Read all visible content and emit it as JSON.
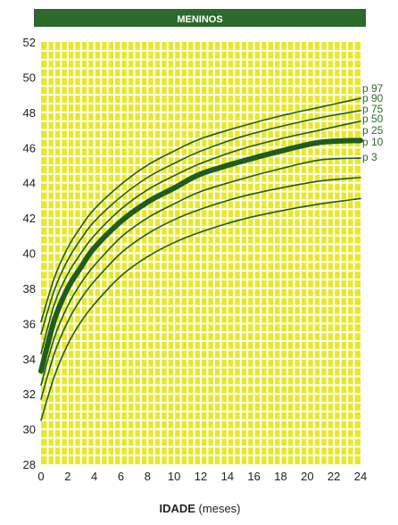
{
  "header": {
    "title": "MENINOS"
  },
  "colors": {
    "header_bg": "#2c6a2c",
    "header_text": "#ffffff",
    "plot_bg": "#e8e82a",
    "grid": "#ffffff",
    "curve": "#1f5c1f",
    "label_text": "#2c6a2c",
    "axis_text": "#222222"
  },
  "chart_data": {
    "type": "line",
    "title": "MENINOS",
    "xlabel_bold": "IDADE",
    "xlabel_rest": " (meses)",
    "ylabel": "",
    "xlim": [
      0,
      24
    ],
    "ylim": [
      28,
      52
    ],
    "x_ticks": [
      0,
      2,
      4,
      6,
      8,
      10,
      12,
      14,
      16,
      18,
      20,
      22,
      24
    ],
    "y_ticks": [
      28,
      30,
      32,
      34,
      36,
      38,
      40,
      42,
      44,
      46,
      48,
      50,
      52
    ],
    "grid": true,
    "x": [
      0,
      1,
      2,
      3,
      4,
      6,
      8,
      10,
      12,
      15,
      18,
      21,
      24
    ],
    "series": [
      {
        "name": "p 97",
        "bold": false,
        "values": [
          36.1,
          38.6,
          40.3,
          41.5,
          42.5,
          43.9,
          45.0,
          45.8,
          46.5,
          47.2,
          47.8,
          48.3,
          48.8
        ]
      },
      {
        "name": "p 90",
        "bold": false,
        "values": [
          35.4,
          37.9,
          39.6,
          40.8,
          41.8,
          43.2,
          44.3,
          45.1,
          45.8,
          46.6,
          47.2,
          47.7,
          48.1
        ]
      },
      {
        "name": "p 75",
        "bold": false,
        "values": [
          34.3,
          37.1,
          38.8,
          40.0,
          41.0,
          42.5,
          43.6,
          44.4,
          45.1,
          45.9,
          46.5,
          47.0,
          47.5
        ]
      },
      {
        "name": "p 50",
        "bold": true,
        "values": [
          33.3,
          36.2,
          38.0,
          39.2,
          40.3,
          41.8,
          42.9,
          43.7,
          44.5,
          45.2,
          45.8,
          46.3,
          46.4
        ]
      },
      {
        "name": "p 25",
        "bold": false,
        "values": [
          32.5,
          35.2,
          37.0,
          38.3,
          39.3,
          40.9,
          42.0,
          42.8,
          43.5,
          44.2,
          44.8,
          45.3,
          45.4
        ]
      },
      {
        "name": "p 10",
        "bold": false,
        "values": [
          31.7,
          34.3,
          36.1,
          37.4,
          38.4,
          40.0,
          41.1,
          41.9,
          42.5,
          43.2,
          43.7,
          44.1,
          44.3
        ]
      },
      {
        "name": "p 3",
        "bold": false,
        "values": [
          30.5,
          33.0,
          34.8,
          36.1,
          37.1,
          38.7,
          39.8,
          40.6,
          41.2,
          41.9,
          42.4,
          42.8,
          43.1
        ]
      }
    ]
  }
}
